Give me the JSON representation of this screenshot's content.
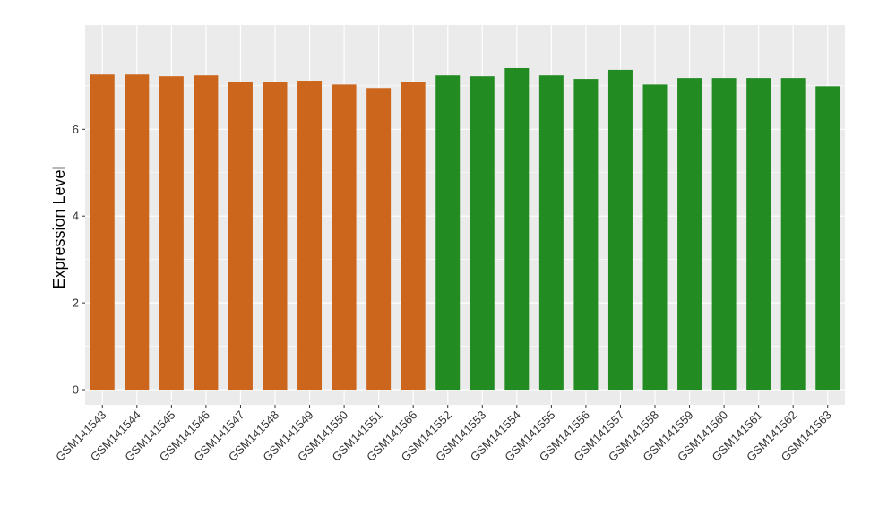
{
  "chart_data": {
    "type": "bar",
    "title": "",
    "xlabel": "",
    "ylabel": "Expression Level",
    "ylim": [
      -0.35,
      8.4
    ],
    "yticks": [
      0,
      2,
      4,
      6
    ],
    "grid": true,
    "categories": [
      "GSM141543",
      "GSM141544",
      "GSM141545",
      "GSM141546",
      "GSM141547",
      "GSM141548",
      "GSM141549",
      "GSM141550",
      "GSM141551",
      "GSM141566",
      "GSM141552",
      "GSM141553",
      "GSM141554",
      "GSM141555",
      "GSM141556",
      "GSM141557",
      "GSM141558",
      "GSM141559",
      "GSM141560",
      "GSM141561",
      "GSM141562",
      "GSM141563"
    ],
    "values": [
      7.26,
      7.26,
      7.22,
      7.24,
      7.1,
      7.08,
      7.12,
      7.03,
      6.95,
      7.08,
      7.24,
      7.22,
      7.41,
      7.24,
      7.16,
      7.37,
      7.03,
      7.18,
      7.18,
      7.18,
      7.18,
      6.99
    ],
    "bar_colors": [
      "#cd661d",
      "#cd661d",
      "#cd661d",
      "#cd661d",
      "#cd661d",
      "#cd661d",
      "#cd661d",
      "#cd661d",
      "#cd661d",
      "#cd661d",
      "#228b22",
      "#228b22",
      "#228b22",
      "#228b22",
      "#228b22",
      "#228b22",
      "#228b22",
      "#228b22",
      "#228b22",
      "#228b22",
      "#228b22",
      "#228b22"
    ],
    "panel_background": "#ebebeb"
  }
}
